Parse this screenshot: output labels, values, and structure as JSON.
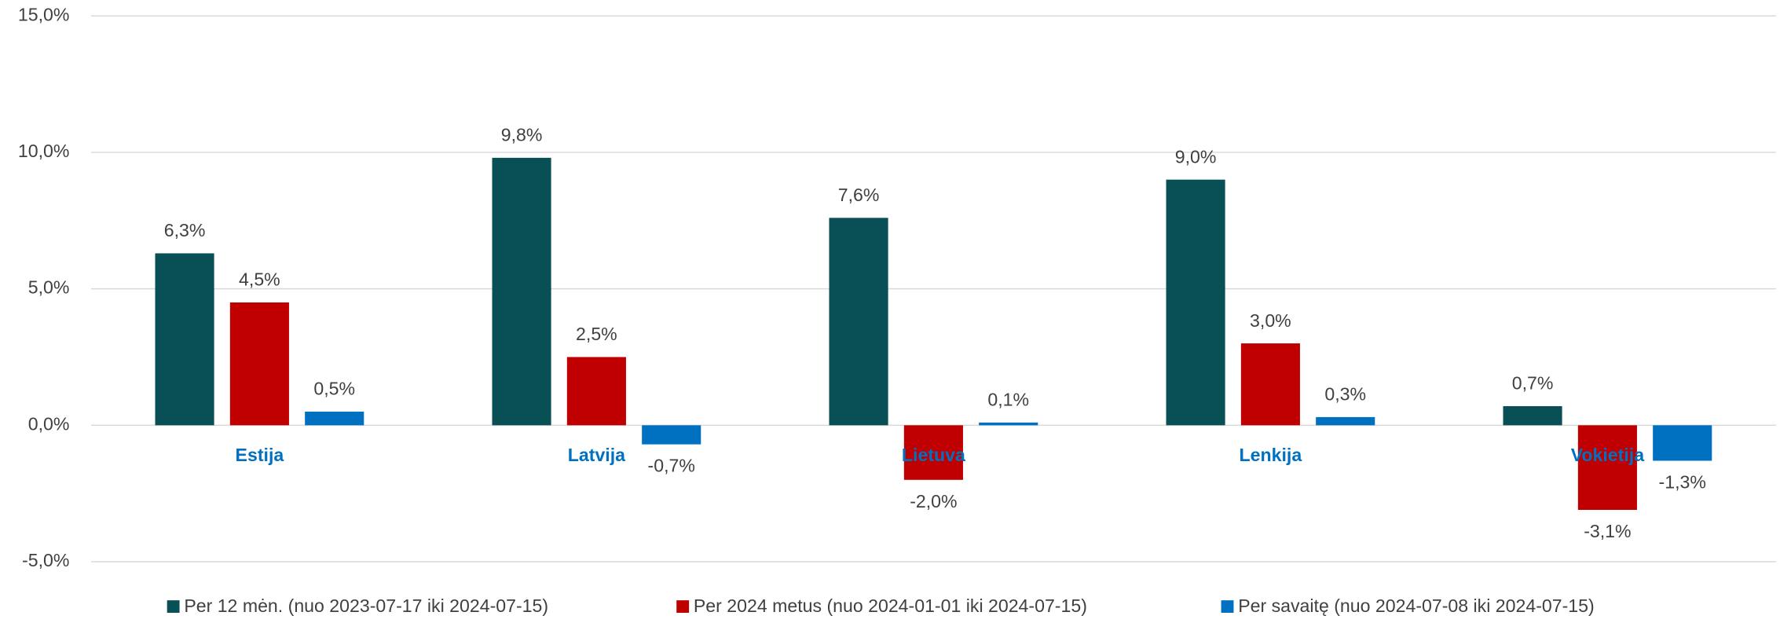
{
  "chart_data": {
    "type": "bar",
    "categories": [
      "Estija",
      "Latvija",
      "Lietuva",
      "Lenkija",
      "Vokietija"
    ],
    "series": [
      {
        "name": "Per 12 mėn. (nuo 2023-07-17 iki 2024-07-15)",
        "color": "#084f56",
        "values": [
          6.3,
          9.8,
          7.6,
          9.0,
          0.7
        ],
        "value_labels": [
          "6,3%",
          "9,8%",
          "7,6%",
          "9,0%",
          "0,7%"
        ]
      },
      {
        "name": "Per 2024 metus (nuo 2024-01-01 iki 2024-07-15)",
        "color": "#c00000",
        "values": [
          4.5,
          2.5,
          -2.0,
          3.0,
          -3.1
        ],
        "value_labels": [
          "4,5%",
          "2,5%",
          "-2,0%",
          "3,0%",
          "-3,1%"
        ]
      },
      {
        "name": "Per savaitę (nuo 2024-07-08 iki 2024-07-15)",
        "color": "#0070c0",
        "values": [
          0.5,
          -0.7,
          0.1,
          0.3,
          -1.3
        ],
        "value_labels": [
          "0,5%",
          "-0,7%",
          "0,1%",
          "0,3%",
          "-1,3%"
        ]
      }
    ],
    "ylim": [
      -5,
      15
    ],
    "yticks": [
      {
        "value": -5,
        "label": "-5,0%"
      },
      {
        "value": 0,
        "label": "0,0%"
      },
      {
        "value": 5,
        "label": "5,0%"
      },
      {
        "value": 10,
        "label": "10,0%"
      },
      {
        "value": 15,
        "label": "15,0%"
      }
    ],
    "grid": true,
    "legend": "bottom"
  }
}
